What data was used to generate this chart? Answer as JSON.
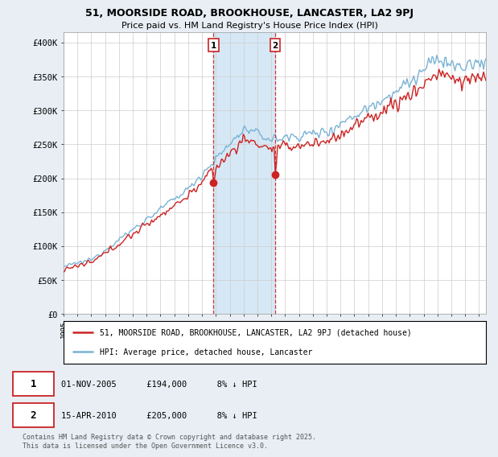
{
  "title_line1": "51, MOORSIDE ROAD, BROOKHOUSE, LANCASTER, LA2 9PJ",
  "title_line2": "Price paid vs. HM Land Registry's House Price Index (HPI)",
  "ylabel_ticks": [
    "£0",
    "£50K",
    "£100K",
    "£150K",
    "£200K",
    "£250K",
    "£300K",
    "£350K",
    "£400K"
  ],
  "ytick_values": [
    0,
    50000,
    100000,
    150000,
    200000,
    250000,
    300000,
    350000,
    400000
  ],
  "ylim": [
    0,
    415000
  ],
  "xlim_start": 1995.0,
  "xlim_end": 2025.5,
  "hpi_color": "#7ab3d4",
  "sale_color": "#cc2222",
  "vline_color": "#cc2222",
  "shade_color": "#d6e8f5",
  "sale1_x": 2005.83,
  "sale1_y": 194000,
  "sale1_label": "01-NOV-2005",
  "sale1_price": "£194,000",
  "sale1_note": "8% ↓ HPI",
  "sale2_x": 2010.29,
  "sale2_y": 205000,
  "sale2_label": "15-APR-2010",
  "sale2_price": "£205,000",
  "sale2_note": "8% ↓ HPI",
  "legend_line1": "51, MOORSIDE ROAD, BROOKHOUSE, LANCASTER, LA2 9PJ (detached house)",
  "legend_line2": "HPI: Average price, detached house, Lancaster",
  "footnote": "Contains HM Land Registry data © Crown copyright and database right 2025.\nThis data is licensed under the Open Government Licence v3.0.",
  "background_color": "#e8eef4",
  "plot_bg_color": "#ffffff",
  "grid_color": "#cccccc"
}
